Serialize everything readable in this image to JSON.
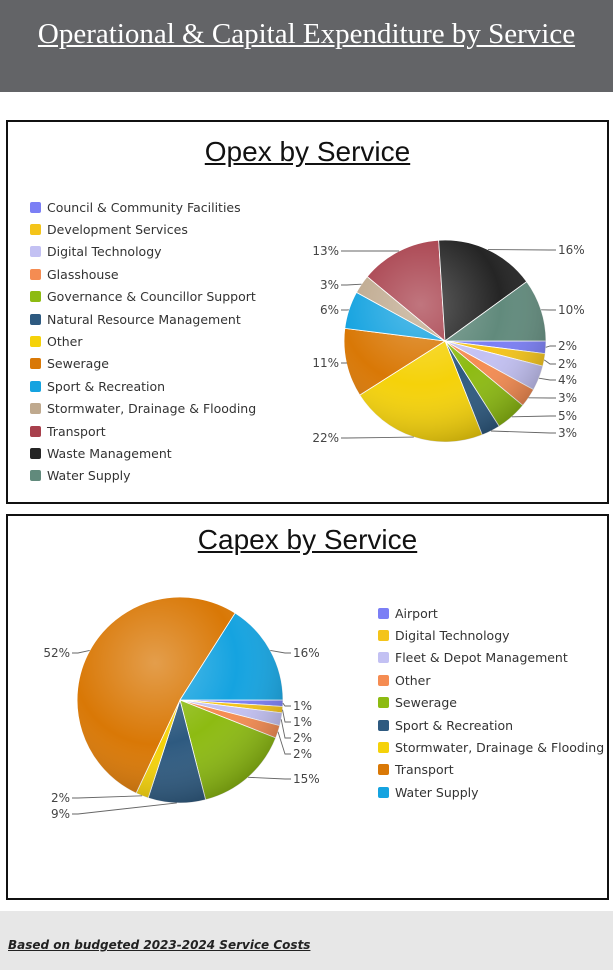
{
  "page": {
    "title": "Operational & Capital Expenditure by Service",
    "footer_note": "Based on budgeted 2023-2024 Service Costs"
  },
  "chart_data": [
    {
      "type": "pie",
      "title": "Opex by Service",
      "legend_position": "left",
      "labels": [
        "Council & Community Facilities",
        "Development Services",
        "Digital Technology",
        "Glasshouse",
        "Governance & Councillor Support",
        "Natural Resource Management",
        "Other",
        "Sewerage",
        "Sport & Recreation",
        "Stormwater, Drainage & Flooding",
        "Transport",
        "Waste Management",
        "Water Supply"
      ],
      "values": [
        2,
        2,
        4,
        3,
        5,
        3,
        22,
        11,
        6,
        3,
        13,
        16,
        10
      ],
      "value_labels": [
        "2%",
        "2%",
        "4%",
        "3%",
        "5%",
        "3%",
        "22%",
        "11%",
        "6%",
        "3%",
        "13%",
        "16%",
        "10%"
      ],
      "colors": [
        "#7b7ff5",
        "#f4c41a",
        "#c3c1f3",
        "#f58c52",
        "#8dbb12",
        "#2e5a80",
        "#f5d20a",
        "#d97806",
        "#15a3e0",
        "#bfa98e",
        "#a8404c",
        "#252525",
        "#618a7c"
      ]
    },
    {
      "type": "pie",
      "title": "Capex by Service",
      "legend_position": "right",
      "labels": [
        "Airport",
        "Digital Technology",
        "Fleet & Depot Management",
        "Other",
        "Sewerage",
        "Sport & Recreation",
        "Stormwater, Drainage & Flooding",
        "Transport",
        "Water Supply"
      ],
      "values": [
        1,
        1,
        2,
        2,
        15,
        9,
        2,
        52,
        16
      ],
      "value_labels": [
        "1%",
        "1%",
        "2%",
        "2%",
        "15%",
        "9%",
        "2%",
        "52%",
        "16%"
      ],
      "colors": [
        "#7b7ff5",
        "#f4c41a",
        "#c3c1f3",
        "#f58c52",
        "#8dbb12",
        "#2e5a80",
        "#f5d20a",
        "#d97806",
        "#15a3e0"
      ]
    }
  ]
}
